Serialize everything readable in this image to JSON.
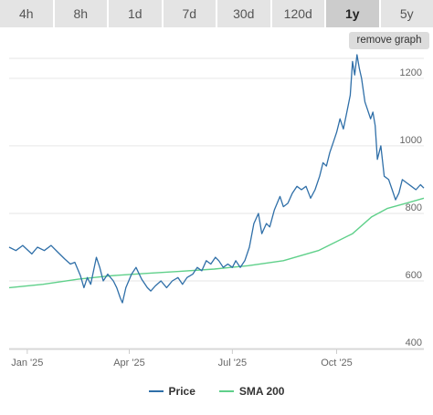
{
  "tabs": [
    {
      "label": "4h",
      "active": false
    },
    {
      "label": "8h",
      "active": false
    },
    {
      "label": "1d",
      "active": false
    },
    {
      "label": "7d",
      "active": false
    },
    {
      "label": "30d",
      "active": false
    },
    {
      "label": "120d",
      "active": false
    },
    {
      "label": "1y",
      "active": true
    },
    {
      "label": "5y",
      "active": false
    }
  ],
  "remove_button_label": "remove graph",
  "colors": {
    "price": "#2f6fa8",
    "sma": "#5fd08a",
    "grid": "#e6e6e6",
    "axis_text": "#666666"
  },
  "chart_data": {
    "type": "line",
    "y_ticks": [
      400,
      600,
      800,
      1000,
      1200
    ],
    "ylim": [
      400,
      1270
    ],
    "x_ticks": [
      {
        "label": "Jan '25",
        "date": "2025-01-01"
      },
      {
        "label": "Apr '25",
        "date": "2025-04-01"
      },
      {
        "label": "Jul '25",
        "date": "2025-07-01"
      },
      {
        "label": "Oct '25",
        "date": "2025-10-01"
      }
    ],
    "xlim": [
      "2024-12-16",
      "2025-12-17"
    ],
    "grid": true,
    "legend_position": "bottom-center",
    "series": [
      {
        "name": "Price",
        "color": "#2f6fa8",
        "points": [
          [
            "2024-12-16",
            700
          ],
          [
            "2024-12-22",
            690
          ],
          [
            "2024-12-28",
            705
          ],
          [
            "2025-01-05",
            680
          ],
          [
            "2025-01-10",
            700
          ],
          [
            "2025-01-16",
            690
          ],
          [
            "2025-01-22",
            705
          ],
          [
            "2025-01-28",
            685
          ],
          [
            "2025-02-03",
            665
          ],
          [
            "2025-02-08",
            650
          ],
          [
            "2025-02-12",
            655
          ],
          [
            "2025-02-17",
            615
          ],
          [
            "2025-02-20",
            580
          ],
          [
            "2025-02-23",
            610
          ],
          [
            "2025-02-26",
            590
          ],
          [
            "2025-03-03",
            670
          ],
          [
            "2025-03-06",
            640
          ],
          [
            "2025-03-09",
            600
          ],
          [
            "2025-03-13",
            620
          ],
          [
            "2025-03-18",
            600
          ],
          [
            "2025-03-21",
            580
          ],
          [
            "2025-03-24",
            550
          ],
          [
            "2025-03-26",
            535
          ],
          [
            "2025-03-29",
            580
          ],
          [
            "2025-04-03",
            620
          ],
          [
            "2025-04-07",
            640
          ],
          [
            "2025-04-12",
            605
          ],
          [
            "2025-04-17",
            580
          ],
          [
            "2025-04-20",
            570
          ],
          [
            "2025-04-24",
            585
          ],
          [
            "2025-04-29",
            600
          ],
          [
            "2025-05-04",
            580
          ],
          [
            "2025-05-09",
            600
          ],
          [
            "2025-05-14",
            610
          ],
          [
            "2025-05-18",
            590
          ],
          [
            "2025-05-22",
            610
          ],
          [
            "2025-05-27",
            620
          ],
          [
            "2025-05-31",
            640
          ],
          [
            "2025-06-04",
            630
          ],
          [
            "2025-06-08",
            660
          ],
          [
            "2025-06-12",
            650
          ],
          [
            "2025-06-16",
            670
          ],
          [
            "2025-06-19",
            660
          ],
          [
            "2025-06-23",
            640
          ],
          [
            "2025-06-27",
            650
          ],
          [
            "2025-07-01",
            640
          ],
          [
            "2025-07-04",
            660
          ],
          [
            "2025-07-08",
            640
          ],
          [
            "2025-07-12",
            660
          ],
          [
            "2025-07-16",
            700
          ],
          [
            "2025-07-20",
            770
          ],
          [
            "2025-07-24",
            800
          ],
          [
            "2025-07-27",
            740
          ],
          [
            "2025-07-31",
            770
          ],
          [
            "2025-08-03",
            760
          ],
          [
            "2025-08-07",
            810
          ],
          [
            "2025-08-12",
            850
          ],
          [
            "2025-08-15",
            820
          ],
          [
            "2025-08-19",
            830
          ],
          [
            "2025-08-23",
            860
          ],
          [
            "2025-08-27",
            880
          ],
          [
            "2025-08-31",
            870
          ],
          [
            "2025-09-04",
            880
          ],
          [
            "2025-09-08",
            845
          ],
          [
            "2025-09-12",
            870
          ],
          [
            "2025-09-16",
            910
          ],
          [
            "2025-09-19",
            950
          ],
          [
            "2025-09-22",
            940
          ],
          [
            "2025-09-25",
            980
          ],
          [
            "2025-09-28",
            1010
          ],
          [
            "2025-10-01",
            1040
          ],
          [
            "2025-10-04",
            1080
          ],
          [
            "2025-10-07",
            1050
          ],
          [
            "2025-10-10",
            1100
          ],
          [
            "2025-10-13",
            1150
          ],
          [
            "2025-10-15",
            1250
          ],
          [
            "2025-10-17",
            1210
          ],
          [
            "2025-10-19",
            1270
          ],
          [
            "2025-10-21",
            1230
          ],
          [
            "2025-10-23",
            1200
          ],
          [
            "2025-10-26",
            1130
          ],
          [
            "2025-10-28",
            1110
          ],
          [
            "2025-10-31",
            1080
          ],
          [
            "2025-11-02",
            1100
          ],
          [
            "2025-11-04",
            1060
          ],
          [
            "2025-11-06",
            960
          ],
          [
            "2025-11-09",
            1000
          ],
          [
            "2025-11-12",
            910
          ],
          [
            "2025-11-16",
            900
          ],
          [
            "2025-11-19",
            870
          ],
          [
            "2025-11-22",
            840
          ],
          [
            "2025-11-25",
            860
          ],
          [
            "2025-11-28",
            900
          ],
          [
            "2025-12-02",
            890
          ],
          [
            "2025-12-06",
            880
          ],
          [
            "2025-12-10",
            870
          ],
          [
            "2025-12-14",
            885
          ],
          [
            "2025-12-17",
            875
          ]
        ]
      },
      {
        "name": "SMA 200",
        "color": "#5fd08a",
        "points": [
          [
            "2024-12-16",
            580
          ],
          [
            "2025-01-15",
            590
          ],
          [
            "2025-02-15",
            605
          ],
          [
            "2025-03-15",
            615
          ],
          [
            "2025-04-15",
            622
          ],
          [
            "2025-05-15",
            628
          ],
          [
            "2025-06-15",
            635
          ],
          [
            "2025-07-15",
            645
          ],
          [
            "2025-08-15",
            660
          ],
          [
            "2025-09-15",
            690
          ],
          [
            "2025-10-15",
            740
          ],
          [
            "2025-11-01",
            790
          ],
          [
            "2025-11-15",
            815
          ],
          [
            "2025-12-01",
            830
          ],
          [
            "2025-12-17",
            845
          ]
        ]
      }
    ]
  }
}
